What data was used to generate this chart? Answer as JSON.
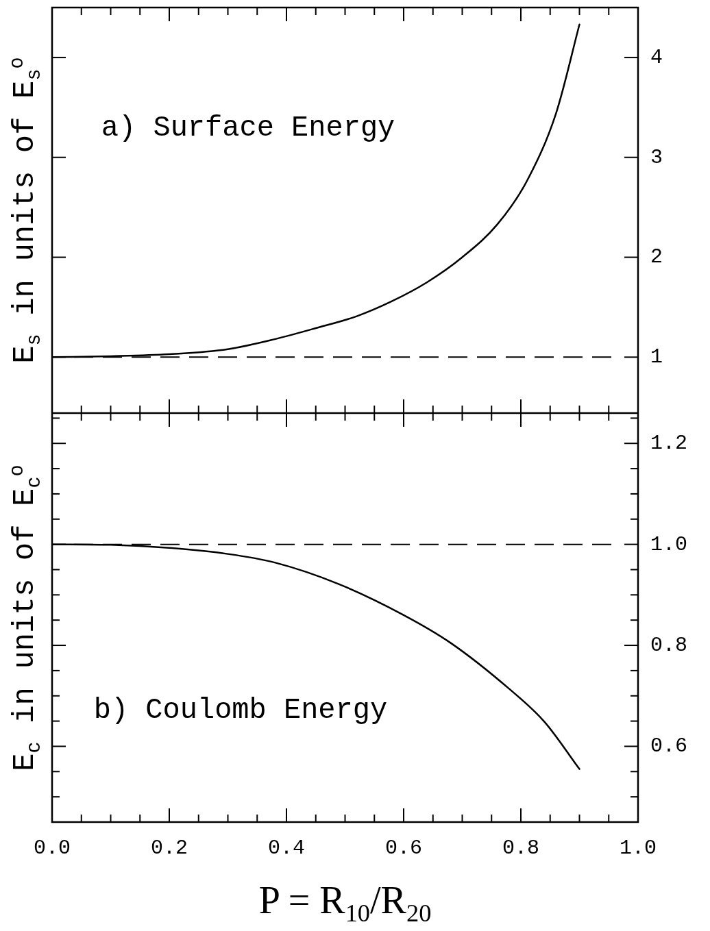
{
  "chart_data": [
    {
      "type": "line",
      "ylabel": "E$_{s}$ in units of E$_{s}$$^{o}$",
      "annotations": [
        "a) Surface Energy"
      ],
      "x": [
        0,
        0.1,
        0.2,
        0.3,
        0.38,
        0.45,
        0.52,
        0.58,
        0.64,
        0.7,
        0.76,
        0.81,
        0.86,
        0.9
      ],
      "series": [
        {
          "color": "#000000",
          "values": [
            1,
            1.01,
            1.03,
            1.08,
            1.18,
            1.29,
            1.41,
            1.56,
            1.75,
            2.0,
            2.33,
            2.76,
            3.44,
            4.33
          ]
        }
      ],
      "xlim": [
        0,
        1
      ],
      "ylim": [
        0.44,
        4.5
      ],
      "xticks": [
        0,
        {
          "value": 0.05,
          "label": null
        },
        {
          "value": 0.1,
          "label": null
        },
        {
          "value": 0.15,
          "label": null
        },
        0.2,
        {
          "value": 0.25,
          "label": null
        },
        {
          "value": 0.3,
          "label": null
        },
        {
          "value": 0.35,
          "label": null
        },
        0.4,
        {
          "value": 0.45,
          "label": null
        },
        {
          "value": 0.5,
          "label": null
        },
        {
          "value": 0.55,
          "label": null
        },
        0.6,
        {
          "value": 0.65,
          "label": null
        },
        {
          "value": 0.7,
          "label": null
        },
        {
          "value": 0.75,
          "label": null
        },
        0.8,
        {
          "value": 0.85,
          "label": null
        },
        {
          "value": 0.9,
          "label": null
        },
        {
          "value": 0.95,
          "label": null
        },
        1
      ],
      "yticks": [
        1,
        2,
        3,
        4
      ],
      "ref_lines": [
        {
          "axis": "y",
          "value": 1,
          "color": "#000000",
          "line_style": "dashed"
        }
      ],
      "tick_labels": "y",
      "grid": false,
      "legend": false,
      "marker": "none",
      "line_style": "solid"
    },
    {
      "type": "line",
      "ylabel": "E$_{c}$ in units of E$_{c}$$^{o}$",
      "xlabel": "P = R$_{10}$/R$_{20}$",
      "annotations": [
        "b) Coulomb Energy"
      ],
      "x": [
        0,
        0.1,
        0.2,
        0.3,
        0.38,
        0.49,
        0.6,
        0.68,
        0.78,
        0.84,
        0.9
      ],
      "series": [
        {
          "color": "#000000",
          "values": [
            1,
            0.999,
            0.993,
            0.981,
            0.964,
            0.921,
            0.86,
            0.805,
            0.714,
            0.649,
            0.555
          ]
        }
      ],
      "xlim": [
        0,
        1
      ],
      "ylim": [
        0.45,
        1.26
      ],
      "xticks": [
        {
          "value": 0,
          "label": "0.0"
        },
        {
          "value": 0.05,
          "label": null
        },
        {
          "value": 0.1,
          "label": null
        },
        {
          "value": 0.15,
          "label": null
        },
        {
          "value": 0.2,
          "label": "0.2"
        },
        {
          "value": 0.25,
          "label": null
        },
        {
          "value": 0.3,
          "label": null
        },
        {
          "value": 0.35,
          "label": null
        },
        {
          "value": 0.4,
          "label": "0.4"
        },
        {
          "value": 0.45,
          "label": null
        },
        {
          "value": 0.5,
          "label": null
        },
        {
          "value": 0.55,
          "label": null
        },
        {
          "value": 0.6,
          "label": "0.6"
        },
        {
          "value": 0.65,
          "label": null
        },
        {
          "value": 0.7,
          "label": null
        },
        {
          "value": 0.75,
          "label": null
        },
        {
          "value": 0.8,
          "label": "0.8"
        },
        {
          "value": 0.85,
          "label": null
        },
        {
          "value": 0.9,
          "label": null
        },
        {
          "value": 0.95,
          "label": null
        },
        {
          "value": 1,
          "label": "1.0"
        }
      ],
      "yticks": [
        {
          "value": 0.5,
          "label": null
        },
        {
          "value": 0.55,
          "label": null
        },
        {
          "value": 0.6,
          "label": "0.6"
        },
        {
          "value": 0.65,
          "label": null
        },
        {
          "value": 0.7,
          "label": null
        },
        {
          "value": 0.75,
          "label": null
        },
        {
          "value": 0.8,
          "label": "0.8"
        },
        {
          "value": 0.85,
          "label": null
        },
        {
          "value": 0.9,
          "label": null
        },
        {
          "value": 0.95,
          "label": null
        },
        {
          "value": 1.0,
          "label": "1.0"
        },
        {
          "value": 1.05,
          "label": null
        },
        {
          "value": 1.1,
          "label": null
        },
        {
          "value": 1.15,
          "label": null
        },
        {
          "value": 1.2,
          "label": "1.2"
        },
        {
          "value": 1.25,
          "label": null
        }
      ],
      "ref_lines": [
        {
          "axis": "y",
          "value": 1,
          "color": "#000000",
          "line_style": "dashed"
        }
      ],
      "grid": false,
      "legend": false,
      "marker": "none",
      "line_style": "solid"
    }
  ]
}
